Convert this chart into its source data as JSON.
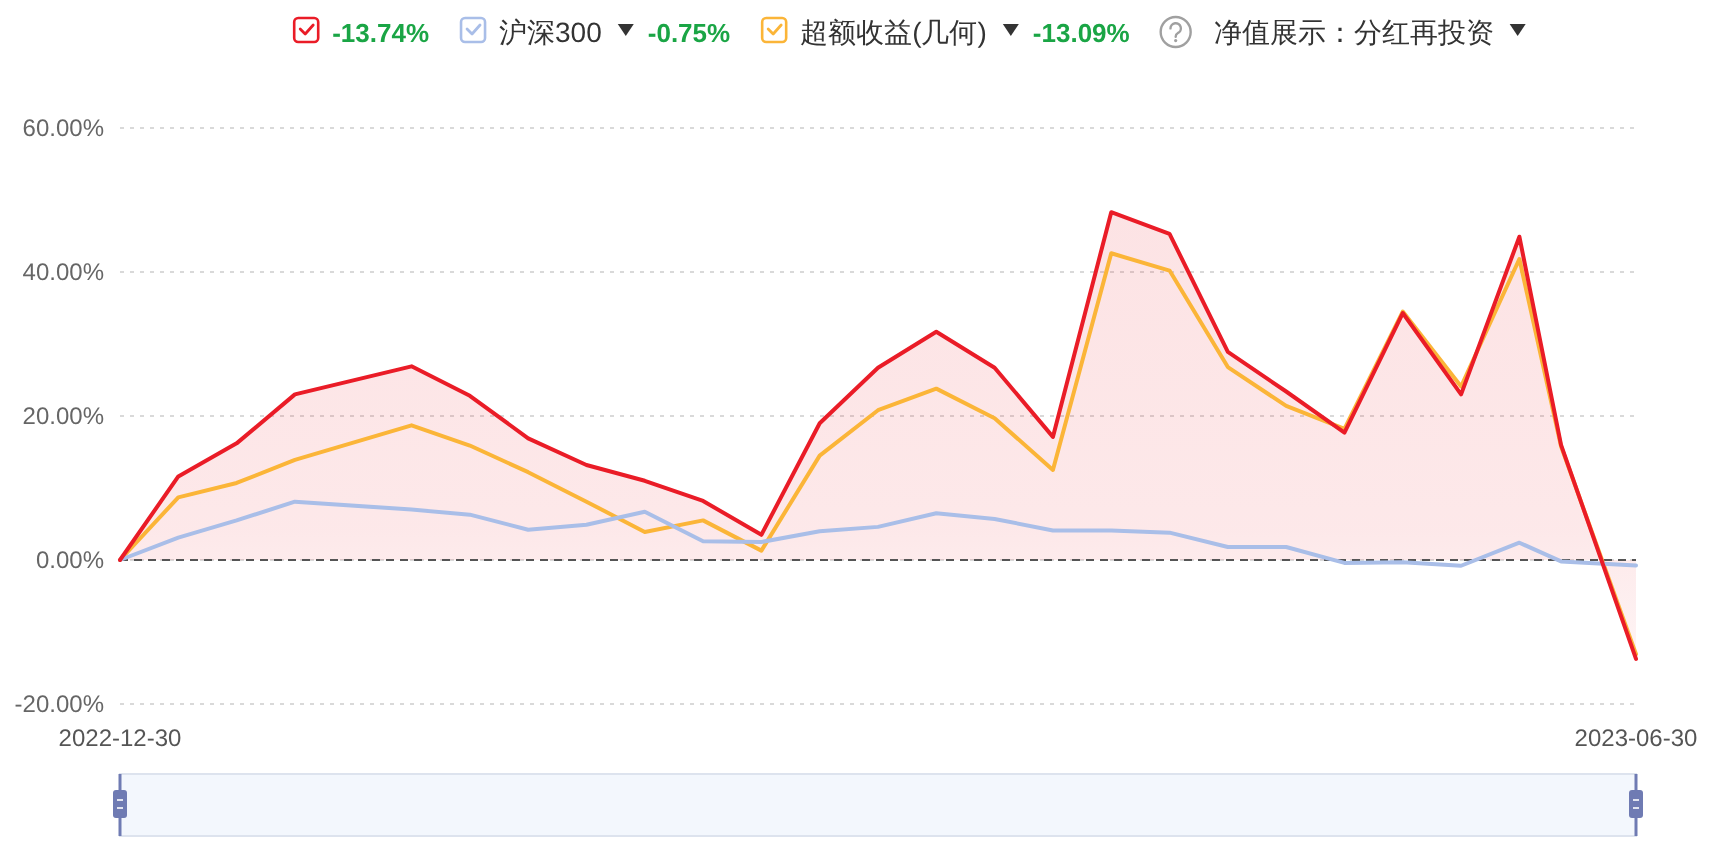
{
  "chart_data": {
    "type": "line",
    "x": [
      "2022-12-30",
      "2023-01-06",
      "2023-01-13",
      "2023-01-20",
      "2023-02-03",
      "2023-02-10",
      "2023-02-17",
      "2023-02-24",
      "2023-03-03",
      "2023-03-10",
      "2023-03-17",
      "2023-03-24",
      "2023-03-31",
      "2023-04-07",
      "2023-04-14",
      "2023-04-21",
      "2023-04-28",
      "2023-05-05",
      "2023-05-12",
      "2023-05-19",
      "2023-05-26",
      "2023-06-02",
      "2023-06-09",
      "2023-06-16",
      "2023-06-21",
      "2023-06-30"
    ],
    "xlim": [
      "2022-12-30",
      "2023-06-30"
    ],
    "xticks": [
      "2022-12-30",
      "2023-06-30"
    ],
    "ylim": [
      -20,
      60
    ],
    "yticks": [
      {
        "value": -20,
        "label": "-20.00%"
      },
      {
        "value": 0,
        "label": "0.00%"
      },
      {
        "value": 20,
        "label": "20.00%"
      },
      {
        "value": 40,
        "label": "40.00%"
      },
      {
        "value": 60,
        "label": "60.00%"
      }
    ],
    "grid": "y",
    "legend": "top",
    "series": [
      {
        "type": "area",
        "color": "#ea1c27",
        "values": [
          0,
          11.6,
          16.2,
          23.0,
          26.9,
          22.8,
          16.9,
          13.2,
          11.0,
          8.2,
          3.5,
          19.0,
          26.7,
          31.7,
          26.7,
          17.1,
          48.3,
          45.3,
          28.9,
          23.4,
          17.7,
          34.3,
          23.0,
          44.9,
          16.0,
          -13.74
        ]
      },
      {
        "name": "沪深300",
        "color": "#a9bee8",
        "values": [
          0,
          3.1,
          5.5,
          8.1,
          7.0,
          6.3,
          4.2,
          4.9,
          6.7,
          2.6,
          2.5,
          4.0,
          4.6,
          6.5,
          5.7,
          4.1,
          4.1,
          3.8,
          1.8,
          1.8,
          -0.4,
          -0.3,
          -0.8,
          2.4,
          -0.2,
          -0.75
        ]
      },
      {
        "name": "超额收益(几何)",
        "color": "#fbb538",
        "values": [
          0,
          8.7,
          10.7,
          13.9,
          18.7,
          15.9,
          12.2,
          8.1,
          3.9,
          5.5,
          1.3,
          14.5,
          20.8,
          23.8,
          19.7,
          12.5,
          42.6,
          40.2,
          26.8,
          21.4,
          18.2,
          34.5,
          24.1,
          41.8,
          15.8,
          -13.09
        ]
      }
    ],
    "ref_lines": [
      {
        "axis": "y",
        "value": 0,
        "color": "#555555",
        "line_style": "dashed"
      }
    ],
    "annotations": [
      "-13.74%",
      "-0.75%",
      "-13.09%",
      "净值展示：分红再投资"
    ]
  }
}
